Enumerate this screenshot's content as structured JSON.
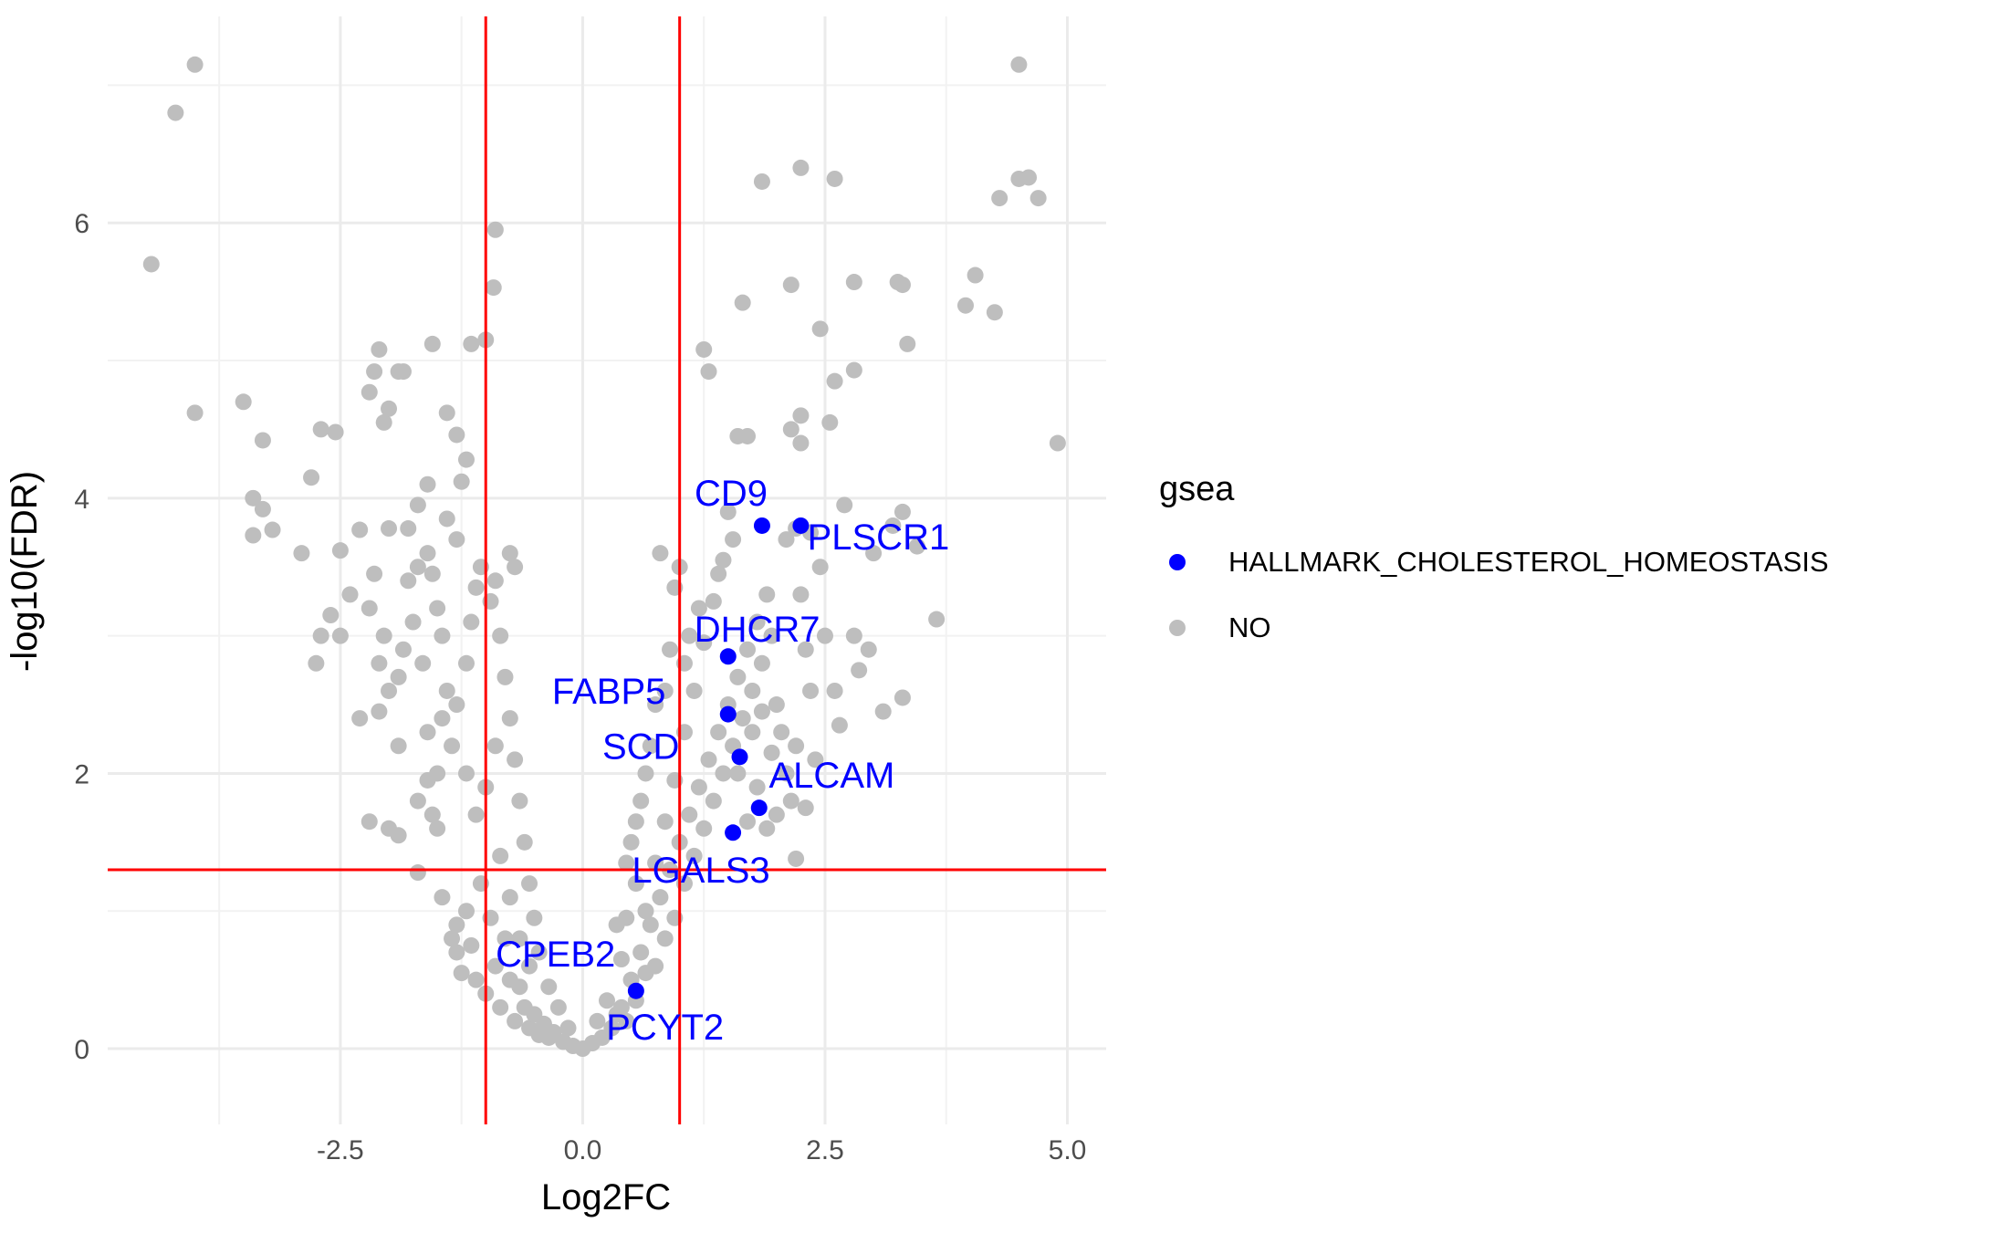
{
  "chart_data": {
    "type": "scatter",
    "xlabel": "Log2FC",
    "ylabel": "-log10(FDR)",
    "xlim": [
      -4.9,
      5.4
    ],
    "ylim": [
      -0.55,
      7.5
    ],
    "x_ticks": [
      -2.5,
      0.0,
      2.5,
      5.0
    ],
    "x_tick_labels": [
      "-2.5",
      "0.0",
      "2.5",
      "5.0"
    ],
    "y_ticks": [
      0,
      2,
      4,
      6
    ],
    "y_tick_labels": [
      "0",
      "2",
      "4",
      "6"
    ],
    "grid": true,
    "thresholds": {
      "x": [
        -1,
        1
      ],
      "y": 1.3,
      "color": "#ff0000"
    },
    "legend": {
      "title": "gsea",
      "position": "right",
      "entries": [
        {
          "label": "HALLMARK_CHOLESTEROL_HOMEOSTASIS",
          "color": "#0000ff"
        },
        {
          "label": "NO",
          "color": "#bebebe"
        }
      ]
    },
    "series": [
      {
        "name": "NO",
        "color": "#bebebe",
        "points": [
          [
            -4.45,
            5.7
          ],
          [
            -4.2,
            6.8
          ],
          [
            -4.0,
            7.15
          ],
          [
            -4.0,
            4.62
          ],
          [
            -3.5,
            4.7
          ],
          [
            -3.4,
            4.0
          ],
          [
            -3.4,
            3.73
          ],
          [
            -3.3,
            3.92
          ],
          [
            -3.3,
            4.42
          ],
          [
            -3.2,
            3.77
          ],
          [
            -2.9,
            3.6
          ],
          [
            -2.8,
            4.15
          ],
          [
            -2.7,
            4.5
          ],
          [
            -2.55,
            4.48
          ],
          [
            -2.5,
            3.62
          ],
          [
            -2.4,
            3.3
          ],
          [
            -2.3,
            3.77
          ],
          [
            -2.2,
            4.77
          ],
          [
            -2.15,
            4.92
          ],
          [
            -2.1,
            5.08
          ],
          [
            -2.05,
            4.55
          ],
          [
            -2.0,
            4.65
          ],
          [
            -1.9,
            4.92
          ],
          [
            -1.85,
            4.92
          ],
          [
            -1.7,
            3.5
          ],
          [
            -1.55,
            5.12
          ],
          [
            -1.4,
            4.62
          ],
          [
            -1.3,
            4.46
          ],
          [
            -1.15,
            5.12
          ],
          [
            -1.0,
            5.15
          ],
          [
            -0.9,
            5.95
          ],
          [
            -0.92,
            5.53
          ],
          [
            -1.2,
            4.28
          ],
          [
            -1.25,
            4.12
          ],
          [
            -1.6,
            4.1
          ],
          [
            -1.7,
            3.95
          ],
          [
            -1.8,
            3.78
          ],
          [
            -2.0,
            3.78
          ],
          [
            -2.2,
            3.2
          ],
          [
            -2.6,
            3.15
          ],
          [
            -2.7,
            3.0
          ],
          [
            -2.75,
            2.8
          ],
          [
            -2.5,
            3.0
          ],
          [
            -2.3,
            2.4
          ],
          [
            -2.1,
            2.45
          ],
          [
            -2.0,
            2.6
          ],
          [
            -1.9,
            2.2
          ],
          [
            -2.2,
            1.65
          ],
          [
            -2.0,
            1.6
          ],
          [
            -1.9,
            1.55
          ],
          [
            -1.7,
            1.8
          ],
          [
            -1.6,
            1.95
          ],
          [
            -1.7,
            1.28
          ],
          [
            -1.5,
            1.6
          ],
          [
            -1.45,
            1.1
          ],
          [
            -1.35,
            0.8
          ],
          [
            -1.3,
            0.9
          ],
          [
            -1.3,
            0.7
          ],
          [
            -1.25,
            0.55
          ],
          [
            -1.2,
            1.0
          ],
          [
            -1.15,
            0.75
          ],
          [
            -1.1,
            0.5
          ],
          [
            -1.05,
            1.2
          ],
          [
            -1.0,
            0.4
          ],
          [
            -0.95,
            0.95
          ],
          [
            -0.9,
            0.6
          ],
          [
            -0.85,
            0.3
          ],
          [
            -0.8,
            0.8
          ],
          [
            -0.75,
            0.5
          ],
          [
            -0.7,
            0.2
          ],
          [
            -0.65,
            0.45
          ],
          [
            -0.6,
            0.3
          ],
          [
            -0.55,
            0.15
          ],
          [
            -0.5,
            0.25
          ],
          [
            -0.45,
            0.1
          ],
          [
            -0.4,
            0.18
          ],
          [
            -0.35,
            0.08
          ],
          [
            -0.3,
            0.12
          ],
          [
            -0.2,
            0.05
          ],
          [
            -0.1,
            0.02
          ],
          [
            0.0,
            0.0
          ],
          [
            0.1,
            0.04
          ],
          [
            0.2,
            0.08
          ],
          [
            0.3,
            0.15
          ],
          [
            0.35,
            0.25
          ],
          [
            0.4,
            0.3
          ],
          [
            0.45,
            0.2
          ],
          [
            0.5,
            0.5
          ],
          [
            0.55,
            0.35
          ],
          [
            0.6,
            0.7
          ],
          [
            0.65,
            0.55
          ],
          [
            0.7,
            0.9
          ],
          [
            0.75,
            0.6
          ],
          [
            0.8,
            1.1
          ],
          [
            0.85,
            0.8
          ],
          [
            0.9,
            1.3
          ],
          [
            0.95,
            0.95
          ],
          [
            1.0,
            1.5
          ],
          [
            1.05,
            1.2
          ],
          [
            1.1,
            1.7
          ],
          [
            1.15,
            1.4
          ],
          [
            1.2,
            1.9
          ],
          [
            1.25,
            1.6
          ],
          [
            1.3,
            2.1
          ],
          [
            1.35,
            1.8
          ],
          [
            1.4,
            2.3
          ],
          [
            1.45,
            2.0
          ],
          [
            1.5,
            2.5
          ],
          [
            1.55,
            2.2
          ],
          [
            1.6,
            2.7
          ],
          [
            1.65,
            2.4
          ],
          [
            1.7,
            2.9
          ],
          [
            1.75,
            2.6
          ],
          [
            1.8,
            3.1
          ],
          [
            1.85,
            2.8
          ],
          [
            1.9,
            3.3
          ],
          [
            1.95,
            3.0
          ],
          [
            2.0,
            2.5
          ],
          [
            2.05,
            2.3
          ],
          [
            2.1,
            2.0
          ],
          [
            2.15,
            1.8
          ],
          [
            2.2,
            2.2
          ],
          [
            2.25,
            3.3
          ],
          [
            2.3,
            2.9
          ],
          [
            2.35,
            2.6
          ],
          [
            2.4,
            2.1
          ],
          [
            2.45,
            3.5
          ],
          [
            2.5,
            3.0
          ],
          [
            2.6,
            2.6
          ],
          [
            2.65,
            2.35
          ],
          [
            2.8,
            3.0
          ],
          [
            2.85,
            2.75
          ],
          [
            2.95,
            2.9
          ],
          [
            3.1,
            2.45
          ],
          [
            3.3,
            2.55
          ],
          [
            2.2,
            1.38
          ],
          [
            2.3,
            1.75
          ],
          [
            2.0,
            1.7
          ],
          [
            1.9,
            1.6
          ],
          [
            2.1,
            3.7
          ],
          [
            2.2,
            3.78
          ],
          [
            2.35,
            3.75
          ],
          [
            2.7,
            3.95
          ],
          [
            3.0,
            3.6
          ],
          [
            3.2,
            3.8
          ],
          [
            3.3,
            3.9
          ],
          [
            3.45,
            3.65
          ],
          [
            3.65,
            3.12
          ],
          [
            1.6,
            4.45
          ],
          [
            1.7,
            4.45
          ],
          [
            2.15,
            4.5
          ],
          [
            2.25,
            4.4
          ],
          [
            2.55,
            4.55
          ],
          [
            2.25,
            4.6
          ],
          [
            2.6,
            4.85
          ],
          [
            2.8,
            4.93
          ],
          [
            1.25,
            5.08
          ],
          [
            1.3,
            4.92
          ],
          [
            1.65,
            5.42
          ],
          [
            2.15,
            5.55
          ],
          [
            2.45,
            5.23
          ],
          [
            2.8,
            5.57
          ],
          [
            3.25,
            5.57
          ],
          [
            3.3,
            5.55
          ],
          [
            3.35,
            5.12
          ],
          [
            3.95,
            5.4
          ],
          [
            4.05,
            5.62
          ],
          [
            4.25,
            5.35
          ],
          [
            4.3,
            6.18
          ],
          [
            4.5,
            6.32
          ],
          [
            4.6,
            6.33
          ],
          [
            4.7,
            6.18
          ],
          [
            4.9,
            4.4
          ],
          [
            1.85,
            6.3
          ],
          [
            2.25,
            6.4
          ],
          [
            2.6,
            6.32
          ],
          [
            4.5,
            7.15
          ],
          [
            1.5,
            3.9
          ],
          [
            1.55,
            3.7
          ],
          [
            1.4,
            3.45
          ],
          [
            1.2,
            3.2
          ],
          [
            1.1,
            3.0
          ],
          [
            1.05,
            2.8
          ],
          [
            0.95,
            3.35
          ],
          [
            0.8,
            3.6
          ],
          [
            0.85,
            2.6
          ],
          [
            0.7,
            2.2
          ],
          [
            0.6,
            1.8
          ],
          [
            0.5,
            1.5
          ],
          [
            0.55,
            1.2
          ],
          [
            0.45,
            0.95
          ],
          [
            0.4,
            0.65
          ],
          [
            -0.45,
            0.7
          ],
          [
            -0.5,
            0.95
          ],
          [
            -0.55,
            1.2
          ],
          [
            -0.6,
            1.5
          ],
          [
            -0.65,
            1.8
          ],
          [
            -0.7,
            2.1
          ],
          [
            -0.75,
            2.4
          ],
          [
            -0.8,
            2.7
          ],
          [
            -0.85,
            3.0
          ],
          [
            -0.7,
            3.5
          ],
          [
            -0.75,
            3.6
          ],
          [
            -0.9,
            3.4
          ],
          [
            -0.95,
            3.25
          ],
          [
            -1.05,
            3.5
          ],
          [
            -1.1,
            3.35
          ],
          [
            -1.15,
            3.1
          ],
          [
            -1.2,
            2.8
          ],
          [
            -1.3,
            2.5
          ],
          [
            -1.35,
            2.2
          ],
          [
            -1.4,
            2.6
          ],
          [
            -1.45,
            3.0
          ],
          [
            -1.5,
            3.2
          ],
          [
            -1.55,
            3.45
          ],
          [
            -1.6,
            3.6
          ],
          [
            -1.3,
            3.7
          ],
          [
            -1.4,
            3.85
          ],
          [
            -1.45,
            2.4
          ],
          [
            -1.5,
            2.0
          ],
          [
            -1.55,
            1.7
          ],
          [
            -1.6,
            2.3
          ],
          [
            -1.65,
            2.8
          ],
          [
            -1.75,
            3.1
          ],
          [
            -1.8,
            3.4
          ],
          [
            -1.85,
            2.9
          ],
          [
            -1.9,
            2.7
          ],
          [
            -2.05,
            3.0
          ],
          [
            -2.1,
            2.8
          ],
          [
            -2.15,
            3.45
          ],
          [
            -1.2,
            2.0
          ],
          [
            -1.1,
            1.7
          ],
          [
            -1.0,
            1.9
          ],
          [
            -0.9,
            2.2
          ],
          [
            -0.85,
            1.4
          ],
          [
            -0.75,
            1.1
          ],
          [
            -0.65,
            0.8
          ],
          [
            -0.55,
            0.6
          ],
          [
            0.65,
            1.0
          ],
          [
            0.75,
            1.35
          ],
          [
            0.85,
            1.65
          ],
          [
            0.95,
            1.95
          ],
          [
            1.05,
            2.3
          ],
          [
            1.15,
            2.6
          ],
          [
            1.25,
            2.95
          ],
          [
            1.35,
            3.25
          ],
          [
            1.45,
            3.55
          ],
          [
            1.0,
            3.5
          ],
          [
            0.9,
            2.9
          ],
          [
            0.75,
            2.5
          ],
          [
            0.65,
            2.0
          ],
          [
            0.55,
            1.65
          ],
          [
            0.45,
            1.35
          ],
          [
            0.35,
            0.9
          ],
          [
            -0.35,
            0.45
          ],
          [
            -0.25,
            0.3
          ],
          [
            0.25,
            0.35
          ],
          [
            -0.15,
            0.15
          ],
          [
            0.15,
            0.2
          ],
          [
            1.6,
            2.0
          ],
          [
            1.7,
            1.65
          ],
          [
            1.75,
            2.3
          ],
          [
            1.8,
            1.9
          ],
          [
            1.85,
            2.45
          ],
          [
            1.95,
            2.15
          ]
        ]
      },
      {
        "name": "HALLMARK_CHOLESTEROL_HOMEOSTASIS",
        "color": "#0000ff",
        "points": [
          [
            1.85,
            3.8
          ],
          [
            2.25,
            3.8
          ],
          [
            1.5,
            2.85
          ],
          [
            1.5,
            2.43
          ],
          [
            1.62,
            2.12
          ],
          [
            1.82,
            1.75
          ],
          [
            1.55,
            1.57
          ],
          [
            0.55,
            0.42
          ]
        ]
      }
    ],
    "annotations": [
      {
        "text": "CD9",
        "x": 1.53,
        "y": 4.04
      },
      {
        "text": "PLSCR1",
        "x": 3.05,
        "y": 3.72
      },
      {
        "text": "DHCR7",
        "x": 1.8,
        "y": 3.05
      },
      {
        "text": "FABP5",
        "x": 0.27,
        "y": 2.6
      },
      {
        "text": "SCD",
        "x": 0.6,
        "y": 2.2
      },
      {
        "text": "ALCAM",
        "x": 2.57,
        "y": 1.99
      },
      {
        "text": "LGALS3",
        "x": 1.22,
        "y": 1.3
      },
      {
        "text": "CPEB2",
        "x": -0.28,
        "y": 0.69
      },
      {
        "text": "PCYT2",
        "x": 0.85,
        "y": 0.16
      }
    ]
  }
}
